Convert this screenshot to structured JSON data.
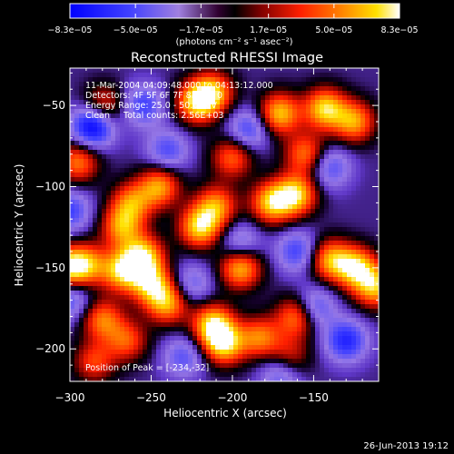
{
  "chart_data": {
    "type": "heatmap",
    "title": "Reconstructed RHESSI Image",
    "xlabel": "Heliocentric X (arcsec)",
    "ylabel": "Heliocentric Y (arcsec)",
    "xlim": [
      -300,
      -110
    ],
    "ylim": [
      -220,
      -27
    ],
    "x_ticks": [
      -300,
      -250,
      -200,
      -150
    ],
    "y_ticks": [
      -50,
      -100,
      -150,
      -200
    ],
    "x_tick_labels": [
      "−300",
      "−250",
      "−200",
      "−150"
    ],
    "y_tick_labels": [
      "−50",
      "−100",
      "−150",
      "−200"
    ],
    "colorbar": {
      "min": -8.3e-05,
      "max": 8.3e-05,
      "tick_values": [
        -8.3e-05,
        -5e-05,
        -1.7e-05,
        1.7e-05,
        5e-05,
        8.3e-05
      ],
      "tick_labels": [
        "−8.3e−05",
        "−5.0e−05",
        "−1.7e−05",
        "1.7e−05",
        "5.0e−05",
        "8.3e−05"
      ],
      "units": "(photons cm⁻² s⁻¹ asec⁻²)"
    },
    "annotations": [
      "11-Mar-2004 04:09:48.000 to 04:13:12.000",
      "Detectors: 4F 5F 6F 7F 8F, Att 0",
      "Energy Range: 25.0 - 50.0 keV",
      "Clean     Total counts: 2.56E+03",
      "Position of Peak = [-234,-32]"
    ],
    "peak": [
      -234,
      -32
    ],
    "blobs": [
      {
        "x": -279,
        "y": -50,
        "v": 0.55
      },
      {
        "x": -222,
        "y": -48,
        "v": 0.9
      },
      {
        "x": -212,
        "y": -42,
        "v": 0.8
      },
      {
        "x": -171,
        "y": -55,
        "v": 0.9
      },
      {
        "x": -143,
        "y": -52,
        "v": 0.95
      },
      {
        "x": -125,
        "y": -60,
        "v": 0.8
      },
      {
        "x": -295,
        "y": -85,
        "v": 0.7
      },
      {
        "x": -200,
        "y": -82,
        "v": 0.65
      },
      {
        "x": -155,
        "y": -80,
        "v": 0.7
      },
      {
        "x": -245,
        "y": -100,
        "v": 0.8
      },
      {
        "x": -176,
        "y": -110,
        "v": 0.9
      },
      {
        "x": -161,
        "y": -105,
        "v": 0.95
      },
      {
        "x": -210,
        "y": -112,
        "v": 0.75
      },
      {
        "x": -262,
        "y": -110,
        "v": 0.7
      },
      {
        "x": -220,
        "y": -125,
        "v": 0.95
      },
      {
        "x": -268,
        "y": -125,
        "v": 0.75
      },
      {
        "x": -255,
        "y": -143,
        "v": 0.95
      },
      {
        "x": -268,
        "y": -152,
        "v": 0.9
      },
      {
        "x": -250,
        "y": -160,
        "v": 0.85
      },
      {
        "x": -240,
        "y": -172,
        "v": 0.8
      },
      {
        "x": -290,
        "y": -148,
        "v": 0.75
      },
      {
        "x": -302,
        "y": -150,
        "v": 0.85
      },
      {
        "x": -195,
        "y": -150,
        "v": 0.9
      },
      {
        "x": -140,
        "y": -145,
        "v": 0.8
      },
      {
        "x": -124,
        "y": -150,
        "v": 0.95
      },
      {
        "x": -112,
        "y": -162,
        "v": 0.85
      },
      {
        "x": -160,
        "y": -180,
        "v": 0.8
      },
      {
        "x": -212,
        "y": -185,
        "v": 0.95
      },
      {
        "x": -205,
        "y": -197,
        "v": 0.95
      },
      {
        "x": -280,
        "y": -182,
        "v": 0.7
      },
      {
        "x": -265,
        "y": -195,
        "v": 0.6
      },
      {
        "x": -183,
        "y": -193,
        "v": 0.7
      },
      {
        "x": -165,
        "y": -205,
        "v": 0.5
      },
      {
        "x": -285,
        "y": -208,
        "v": 0.55
      },
      {
        "x": -286,
        "y": -63,
        "v": -0.95
      },
      {
        "x": -255,
        "y": -50,
        "v": -0.55
      },
      {
        "x": -240,
        "y": -78,
        "v": -0.5
      },
      {
        "x": -190,
        "y": -65,
        "v": -0.55
      },
      {
        "x": -140,
        "y": -88,
        "v": -0.5
      },
      {
        "x": -300,
        "y": -115,
        "v": -0.55
      },
      {
        "x": -195,
        "y": -135,
        "v": -0.45
      },
      {
        "x": -160,
        "y": -140,
        "v": -0.55
      },
      {
        "x": -225,
        "y": -160,
        "v": -0.4
      },
      {
        "x": -150,
        "y": -175,
        "v": -0.6
      },
      {
        "x": -130,
        "y": -195,
        "v": -0.7
      },
      {
        "x": -300,
        "y": -170,
        "v": -0.5
      },
      {
        "x": -230,
        "y": -205,
        "v": -0.45
      },
      {
        "x": -170,
        "y": -215,
        "v": -0.5
      }
    ]
  },
  "footer": {
    "date": "26-Jun-2013 19:12"
  }
}
